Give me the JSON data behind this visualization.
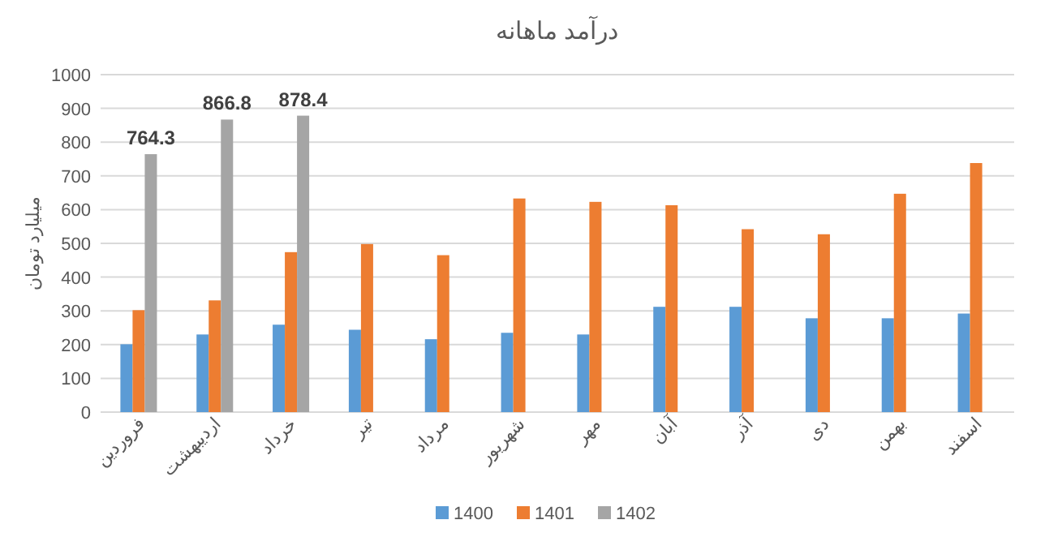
{
  "chart_data": {
    "type": "bar",
    "title": "درآمد ماهانه",
    "ylabel": "میلیارد تومان",
    "categories": [
      "فروردین",
      "اردیبهشت",
      "خرداد",
      "تیر",
      "مرداد",
      "شهریور",
      "مهر",
      "آبان",
      "آذر",
      "دی",
      "بهمن",
      "اسفند"
    ],
    "series": [
      {
        "name": "1400",
        "color": "#5b9bd5",
        "values": [
          201,
          230,
          259,
          244,
          216,
          235,
          230,
          312,
          312,
          278,
          278,
          292
        ]
      },
      {
        "name": "1401",
        "color": "#ed7d31",
        "values": [
          302,
          331,
          474,
          498,
          465,
          633,
          623,
          613,
          542,
          527,
          647,
          738
        ]
      },
      {
        "name": "1402",
        "color": "#a5a5a5",
        "values": [
          764.3,
          866.8,
          878.4,
          null,
          null,
          null,
          null,
          null,
          null,
          null,
          null,
          null
        ],
        "value_labels": [
          "764.3",
          "866.8",
          "878.4",
          null,
          null,
          null,
          null,
          null,
          null,
          null,
          null,
          null
        ]
      }
    ],
    "ylim": [
      0,
      1000
    ],
    "yticks": [
      0,
      100,
      200,
      300,
      400,
      500,
      600,
      700,
      800,
      900,
      1000
    ],
    "grid": "y",
    "legend": "bottom"
  }
}
